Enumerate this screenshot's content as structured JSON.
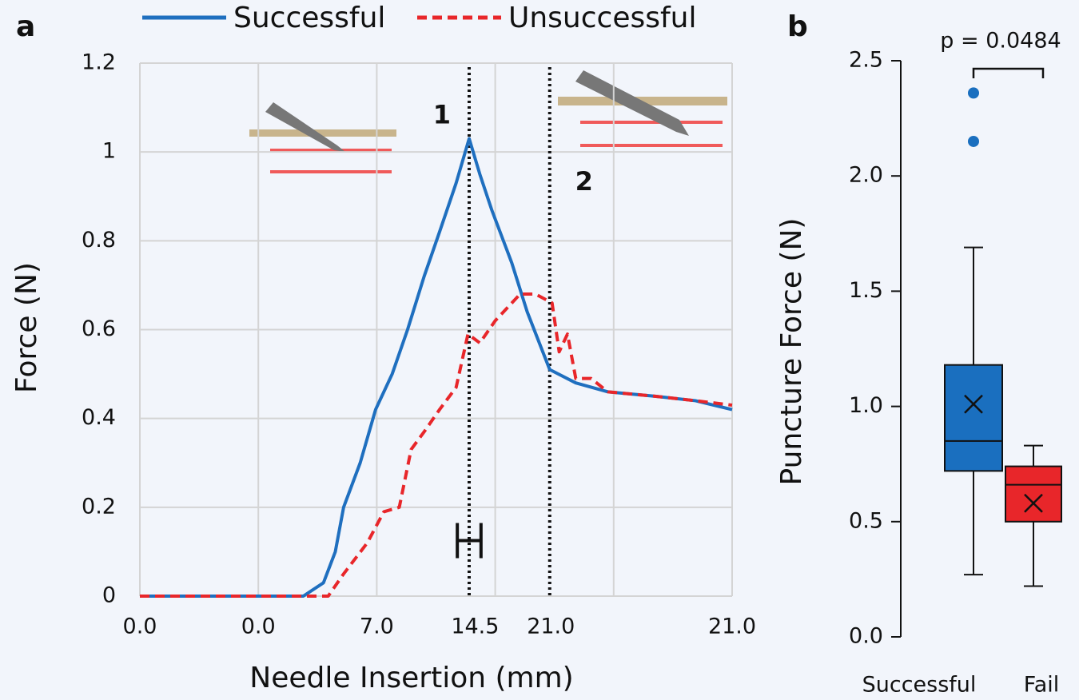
{
  "chart_data": [
    {
      "type": "line",
      "panel_label": "a",
      "xlabel": "Needle Insertion (mm)",
      "ylabel": "Force (N)",
      "xlim": [
        0,
        5
      ],
      "ylim": [
        0,
        1.2
      ],
      "xgrid": [
        0,
        1,
        2,
        3,
        4,
        5
      ],
      "xticks": [
        {
          "value": 0,
          "label": "0.0"
        },
        {
          "value": 1,
          "label": "0.0"
        },
        {
          "value": 2,
          "label": "7.0"
        },
        {
          "value": 2.83,
          "label": "14.5"
        },
        {
          "value": 3.47,
          "label": "21.0"
        },
        {
          "value": 5,
          "label": "21.0"
        }
      ],
      "yticks": [
        0,
        0.2,
        0.4,
        0.6,
        0.8,
        1,
        1.2
      ],
      "grid": true,
      "vlines": [
        2.78,
        3.46
      ],
      "annotations": [
        {
          "text": "1",
          "x": 2.55,
          "y": 1.08
        },
        {
          "text": "2",
          "x": 3.75,
          "y": 0.93
        }
      ],
      "errorbar": {
        "x": 2.78,
        "y": 0.125,
        "xerr": 0.1
      },
      "series": [
        {
          "name": "Successful",
          "color": "#1f6fbf",
          "line_style": "solid",
          "x": [
            0,
            1.38,
            1.55,
            1.65,
            1.72,
            1.86,
            1.99,
            2.13,
            2.26,
            2.4,
            2.53,
            2.67,
            2.78,
            2.87,
            2.97,
            3.14,
            3.27,
            3.46,
            3.68,
            3.95,
            4.35,
            4.69,
            5
          ],
          "values": [
            0,
            0,
            0.03,
            0.1,
            0.2,
            0.3,
            0.42,
            0.5,
            0.6,
            0.72,
            0.82,
            0.93,
            1.03,
            0.95,
            0.87,
            0.75,
            0.64,
            0.51,
            0.48,
            0.46,
            0.45,
            0.44,
            0.42
          ]
        },
        {
          "name": "Unsuccessful",
          "color": "#e8262a",
          "line_style": "dashed",
          "x": [
            0,
            1.59,
            1.72,
            1.92,
            2.06,
            2.19,
            2.29,
            2.4,
            2.53,
            2.67,
            2.77,
            2.87,
            3,
            3.21,
            3.34,
            3.48,
            3.54,
            3.61,
            3.68,
            3.81,
            3.95,
            4.35,
            4.69,
            5
          ],
          "values": [
            0,
            0,
            0.05,
            0.12,
            0.19,
            0.2,
            0.33,
            0.37,
            0.42,
            0.47,
            0.59,
            0.57,
            0.62,
            0.68,
            0.68,
            0.66,
            0.55,
            0.59,
            0.49,
            0.49,
            0.46,
            0.45,
            0.44,
            0.43
          ]
        }
      ]
    },
    {
      "type": "box",
      "panel_label": "b",
      "ylabel": "Puncture Force (N)",
      "ylim": [
        0,
        2.5
      ],
      "yticks": [
        {
          "value": 0,
          "label": "0.0"
        },
        {
          "value": 0.5,
          "label": "0.5"
        },
        {
          "value": 1,
          "label": "1.0"
        },
        {
          "value": 1.5,
          "label": "1.5"
        },
        {
          "value": 2,
          "label": "2.0"
        },
        {
          "value": 2.5,
          "label": "2.5"
        }
      ],
      "annotation": "p = 0.0484",
      "boxes": [
        {
          "name": "Successful",
          "color": "#1a6fbf",
          "whisker_low": 0.27,
          "q1": 0.72,
          "median": 0.85,
          "q3": 1.18,
          "whisker_high": 1.69,
          "mean": 1.01,
          "outliers": [
            2.15,
            2.36
          ]
        },
        {
          "name": "Fail",
          "color": "#e8262a",
          "whisker_low": 0.22,
          "q1": 0.5,
          "median": 0.66,
          "q3": 0.74,
          "whisker_high": 0.83,
          "mean": 0.58,
          "outliers": []
        }
      ]
    }
  ]
}
